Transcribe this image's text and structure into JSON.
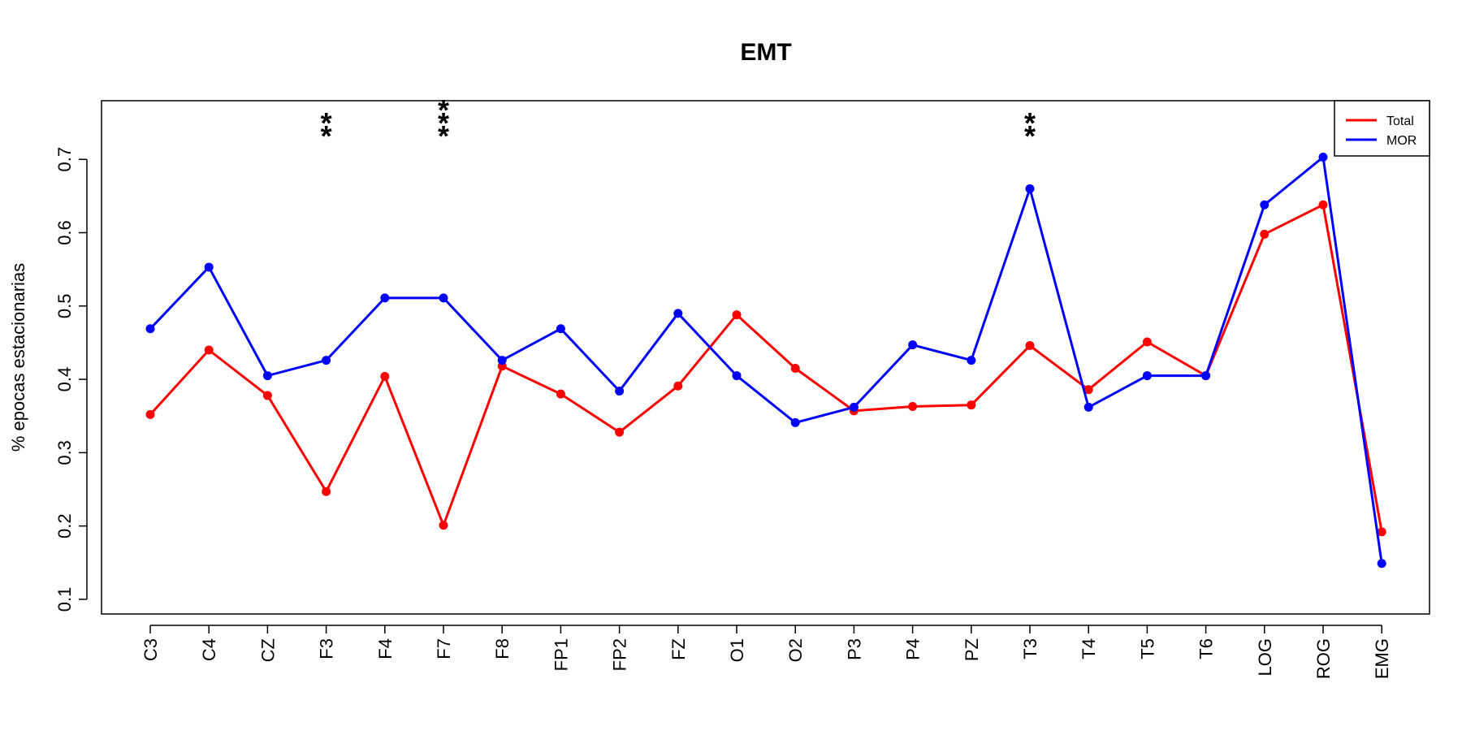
{
  "chart_data": {
    "type": "line",
    "title": "EMT",
    "xlabel": "",
    "ylabel": "% epocas estacionarias",
    "categories": [
      "C3",
      "C4",
      "CZ",
      "F3",
      "F4",
      "F7",
      "F8",
      "FP1",
      "FP2",
      "FZ",
      "O1",
      "O2",
      "P3",
      "P4",
      "PZ",
      "T3",
      "T4",
      "T5",
      "T6",
      "LOG",
      "ROG",
      "EMG"
    ],
    "series": [
      {
        "name": "Total",
        "color": "#ff0000",
        "values": [
          0.352,
          0.44,
          0.378,
          0.247,
          0.404,
          0.201,
          0.418,
          0.38,
          0.328,
          0.391,
          0.488,
          0.415,
          0.357,
          0.363,
          0.365,
          0.446,
          0.386,
          0.451,
          0.405,
          0.598,
          0.638,
          0.192
        ]
      },
      {
        "name": "MOR",
        "color": "#0000ff",
        "values": [
          0.469,
          0.553,
          0.405,
          0.426,
          0.511,
          0.511,
          0.426,
          0.469,
          0.384,
          0.49,
          0.405,
          0.341,
          0.362,
          0.447,
          0.426,
          0.66,
          0.362,
          0.405,
          0.405,
          0.638,
          0.703,
          0.149
        ]
      }
    ],
    "yticks": [
      0.1,
      0.2,
      0.3,
      0.4,
      0.5,
      0.6,
      0.7
    ],
    "ylim": [
      0.08,
      0.78
    ],
    "legend": {
      "position": "top-right",
      "entries": [
        "Total",
        "MOR"
      ]
    },
    "grid": false,
    "annotations": [
      {
        "category": "F3",
        "text": "**"
      },
      {
        "category": "F7",
        "text": "***"
      },
      {
        "category": "T3",
        "text": "**"
      }
    ]
  }
}
